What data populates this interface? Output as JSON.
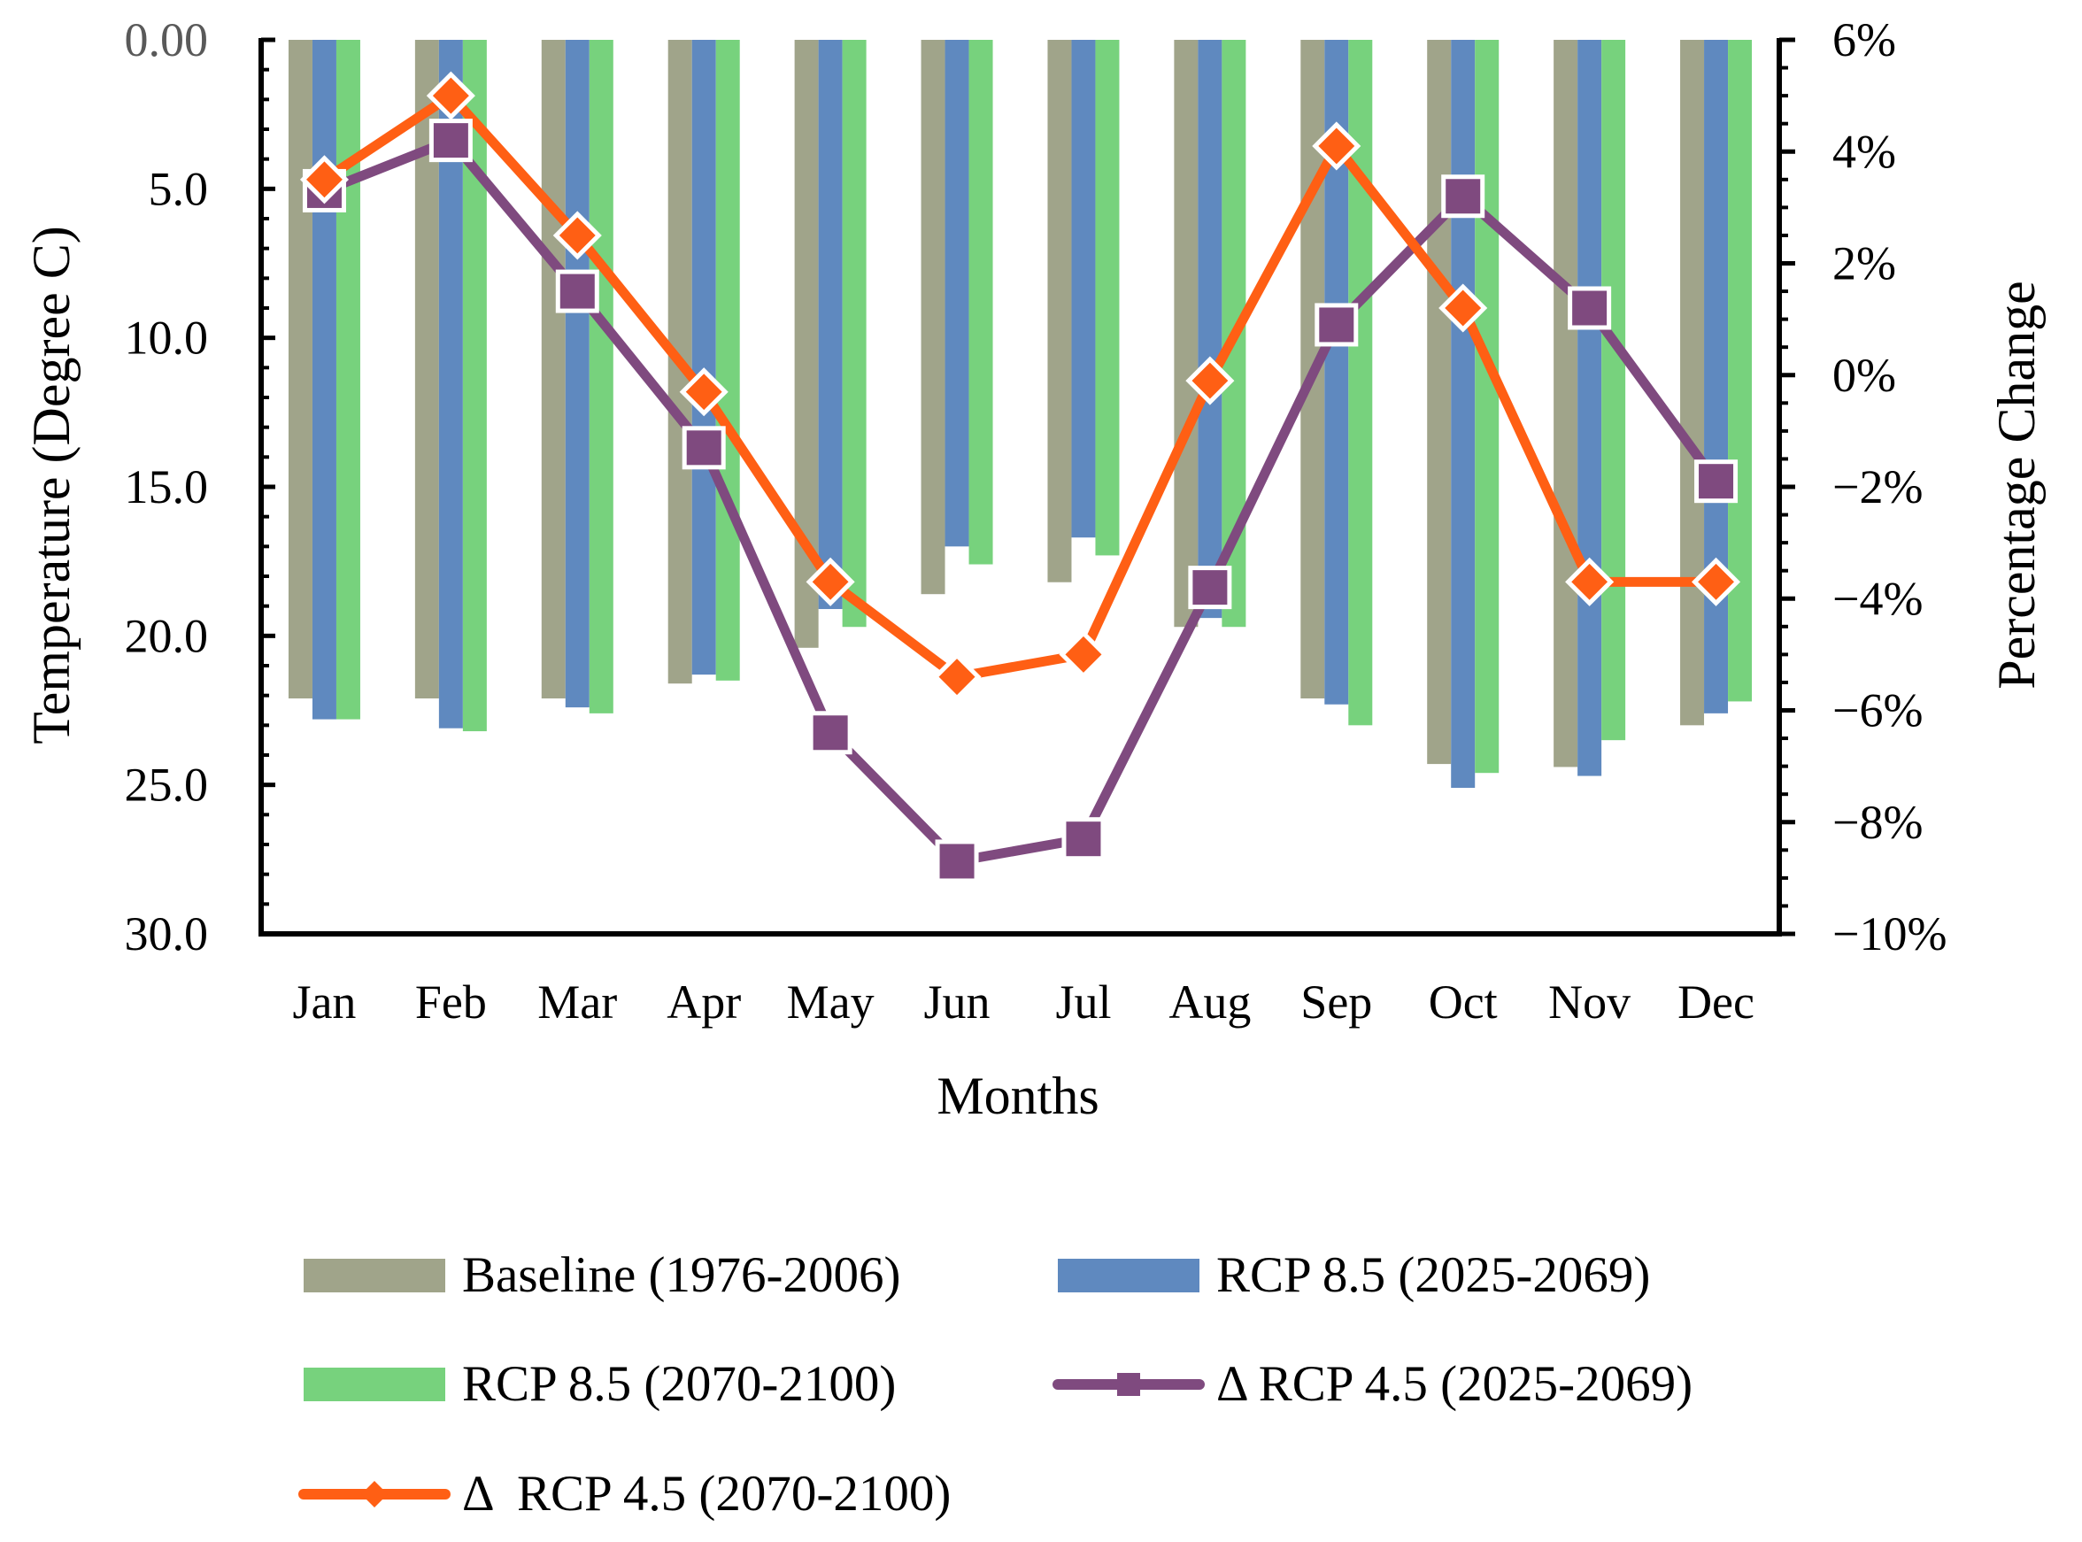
{
  "chart_data": {
    "type": "bar",
    "xlabel": "Months",
    "ylabel_left": "Temperature (Degree C)",
    "ylabel_right": "Percentage Change",
    "left_axis": {
      "range": [
        0,
        30
      ],
      "inverted": true,
      "ticks": [
        0,
        5,
        10,
        15,
        20,
        25,
        30
      ],
      "tick_labels": [
        "0.00",
        "5.0",
        "10.0",
        "15.0",
        "20.0",
        "25.0",
        "30.0"
      ]
    },
    "right_axis": {
      "range": [
        -10,
        6
      ],
      "ticks": [
        6,
        4,
        2,
        0,
        -2,
        -4,
        -6,
        -8,
        -10
      ],
      "tick_labels": [
        "6%",
        "4%",
        "2%",
        "0%",
        "−2%",
        "−4%",
        "−6%",
        "−8%",
        "−10%"
      ]
    },
    "categories": [
      "Jan",
      "Feb",
      "Mar",
      "Apr",
      "May",
      "Jun",
      "Jul",
      "Aug",
      "Sep",
      "Oct",
      "Nov",
      "Dec"
    ],
    "bar_series": [
      {
        "name": "Baseline (1976-2006)",
        "color": "#a0a48a",
        "values": [
          22.1,
          22.1,
          22.1,
          21.6,
          20.4,
          18.6,
          18.2,
          19.7,
          22.1,
          24.3,
          24.4,
          23.0
        ]
      },
      {
        "name": "RCP 8.5 (2025-2069)",
        "color": "#5f89bf",
        "values": [
          22.8,
          23.1,
          22.4,
          21.3,
          19.1,
          17.0,
          16.7,
          19.4,
          22.3,
          25.1,
          24.7,
          22.6
        ]
      },
      {
        "name": "RCP 8.5 (2070-2100)",
        "color": "#77d27d",
        "values": [
          22.8,
          23.2,
          22.6,
          21.5,
          19.7,
          17.6,
          17.3,
          19.7,
          23.0,
          24.6,
          23.5,
          22.2
        ]
      }
    ],
    "line_series": [
      {
        "name": "Δ RCP 4.5 (2025-2069)",
        "color": "#7f4a7f",
        "marker": "square",
        "values": [
          3.3,
          4.2,
          1.5,
          -1.3,
          -6.4,
          -8.7,
          -8.3,
          -3.8,
          0.9,
          3.2,
          1.2,
          -1.9
        ]
      },
      {
        "name": "Δ  RCP 4.5 (2070-2100)",
        "color": "#ff5f14",
        "marker": "diamond",
        "values": [
          3.5,
          5.0,
          2.5,
          -0.3,
          -3.7,
          -5.4,
          -5.0,
          -0.1,
          4.1,
          1.2,
          -3.7,
          -3.7
        ]
      }
    ]
  }
}
